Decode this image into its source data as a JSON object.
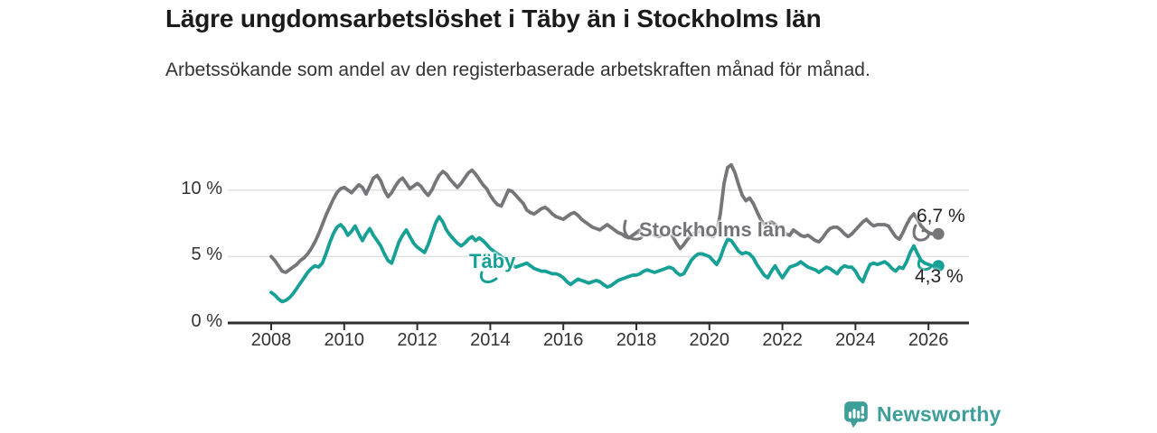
{
  "title": "Lägre ungdomsarbetslöshet i Täby än i Stockholms län",
  "subtitle": "Arbetssökande som andel av den registerbaserade arbetskraften månad för månad.",
  "chart_data": {
    "type": "line",
    "x_start": 2008.0,
    "x_step": 0.1,
    "xlabel": "",
    "ylabel": "",
    "xlim": [
      2007.8,
      2027.1
    ],
    "ylim": [
      0,
      12.5
    ],
    "grid": "horizontal",
    "legend_position": "inline-labels",
    "xticks": [
      2008,
      2010,
      2012,
      2014,
      2016,
      2018,
      2020,
      2022,
      2024,
      2026
    ],
    "yticks": [
      {
        "value": 0,
        "label": "0 %"
      },
      {
        "value": 5,
        "label": "5 %"
      },
      {
        "value": 10,
        "label": "10 %"
      }
    ],
    "series": [
      {
        "name": "Stockholms län",
        "color": "#76767a",
        "end_label": "6,7 %",
        "end_value": 6.7,
        "values": [
          5.0,
          4.7,
          4.3,
          3.9,
          3.8,
          4.0,
          4.2,
          4.4,
          4.7,
          4.9,
          5.2,
          5.6,
          6.1,
          6.7,
          7.4,
          8.1,
          8.7,
          9.3,
          9.8,
          10.1,
          10.2,
          10.0,
          9.8,
          10.1,
          10.4,
          10.2,
          9.7,
          10.3,
          10.9,
          11.1,
          10.7,
          10.0,
          9.5,
          9.8,
          10.3,
          10.7,
          10.9,
          10.5,
          10.1,
          10.3,
          10.5,
          10.3,
          9.9,
          9.6,
          10.0,
          10.6,
          11.1,
          11.4,
          11.2,
          10.8,
          10.5,
          10.2,
          10.5,
          10.9,
          11.3,
          11.5,
          11.2,
          10.8,
          10.4,
          10.1,
          9.6,
          9.2,
          8.9,
          8.8,
          9.4,
          10.0,
          9.9,
          9.6,
          9.3,
          9.0,
          8.5,
          8.3,
          8.2,
          8.4,
          8.6,
          8.7,
          8.5,
          8.2,
          8.0,
          7.9,
          7.8,
          8.0,
          8.2,
          8.3,
          8.1,
          7.8,
          7.6,
          7.4,
          7.2,
          7.1,
          7.0,
          7.2,
          7.4,
          7.2,
          7.0,
          6.8,
          6.7,
          6.5,
          6.4,
          6.6,
          6.8,
          7.0,
          7.2,
          7.0,
          6.8,
          6.6,
          6.5,
          6.6,
          6.7,
          6.8,
          6.5,
          6.0,
          5.6,
          5.9,
          6.3,
          6.6,
          6.8,
          6.9,
          6.8,
          6.7,
          6.6,
          6.5,
          6.8,
          8.2,
          10.5,
          11.7,
          11.9,
          11.3,
          10.4,
          9.6,
          9.2,
          9.4,
          9.0,
          8.4,
          7.8,
          7.4,
          7.5,
          7.6,
          7.4,
          7.2,
          7.0,
          6.7,
          6.6,
          7.0,
          6.8,
          6.6,
          6.5,
          6.6,
          6.4,
          6.2,
          6.1,
          6.4,
          6.8,
          7.1,
          7.2,
          7.2,
          7.0,
          6.7,
          6.5,
          6.7,
          7.0,
          7.3,
          7.6,
          7.8,
          7.5,
          7.3,
          7.4,
          7.4,
          7.4,
          7.3,
          6.9,
          6.5,
          6.3,
          6.8,
          7.4,
          7.9,
          8.2,
          7.8,
          7.3,
          7.0,
          6.8,
          6.7
        ]
      },
      {
        "name": "Täby",
        "color": "#16a096",
        "end_label": "4,3 %",
        "end_value": 4.3,
        "values": [
          2.3,
          2.1,
          1.8,
          1.6,
          1.7,
          1.9,
          2.2,
          2.6,
          3.0,
          3.4,
          3.8,
          4.1,
          4.3,
          4.2,
          4.5,
          5.2,
          6.0,
          6.7,
          7.2,
          7.4,
          7.1,
          6.6,
          6.9,
          7.3,
          6.7,
          6.2,
          6.7,
          7.1,
          6.6,
          6.2,
          5.8,
          5.2,
          4.7,
          4.5,
          5.3,
          6.1,
          6.6,
          7.0,
          6.5,
          6.0,
          5.7,
          5.5,
          5.3,
          5.9,
          6.7,
          7.5,
          8.0,
          7.6,
          7.0,
          6.6,
          6.3,
          6.0,
          5.8,
          6.0,
          6.3,
          6.5,
          6.2,
          6.4,
          6.2,
          5.9,
          5.6,
          5.4,
          5.2,
          5.0,
          4.8,
          4.6,
          4.4,
          4.2,
          4.3,
          4.4,
          4.5,
          4.3,
          4.1,
          4.0,
          3.9,
          3.9,
          3.8,
          3.7,
          3.7,
          3.6,
          3.4,
          3.1,
          2.9,
          3.1,
          3.3,
          3.2,
          3.1,
          3.0,
          3.1,
          3.2,
          3.1,
          2.9,
          2.7,
          2.8,
          3.0,
          3.2,
          3.3,
          3.4,
          3.5,
          3.6,
          3.6,
          3.7,
          3.9,
          4.0,
          3.9,
          3.8,
          3.9,
          4.0,
          4.1,
          4.2,
          4.1,
          3.8,
          3.6,
          3.7,
          4.2,
          4.7,
          5.0,
          5.2,
          5.2,
          5.1,
          5.0,
          4.7,
          4.4,
          4.9,
          5.7,
          6.3,
          6.2,
          5.8,
          5.4,
          5.2,
          5.3,
          5.2,
          4.9,
          4.4,
          4.0,
          3.6,
          3.4,
          3.9,
          4.3,
          3.8,
          3.4,
          3.8,
          4.2,
          4.3,
          4.4,
          4.6,
          4.4,
          4.2,
          4.1,
          4.0,
          3.8,
          4.0,
          4.2,
          4.1,
          3.9,
          3.7,
          4.1,
          4.3,
          4.2,
          4.2,
          3.9,
          3.4,
          3.1,
          3.8,
          4.4,
          4.5,
          4.4,
          4.5,
          4.6,
          4.4,
          4.1,
          3.9,
          4.2,
          4.1,
          4.6,
          5.3,
          5.8,
          5.2,
          4.7,
          4.5,
          4.4,
          4.3
        ]
      }
    ]
  },
  "colors": {
    "grid": "#e0e0e0",
    "axis": "#2e2e2e",
    "tick_text": "#333333",
    "title_text": "#1b1b1b",
    "brand_teal": "#3e9e9a"
  },
  "branding": {
    "logo_text": "Newsworthy",
    "logo_icon": "bar-chart-bubble-icon"
  }
}
